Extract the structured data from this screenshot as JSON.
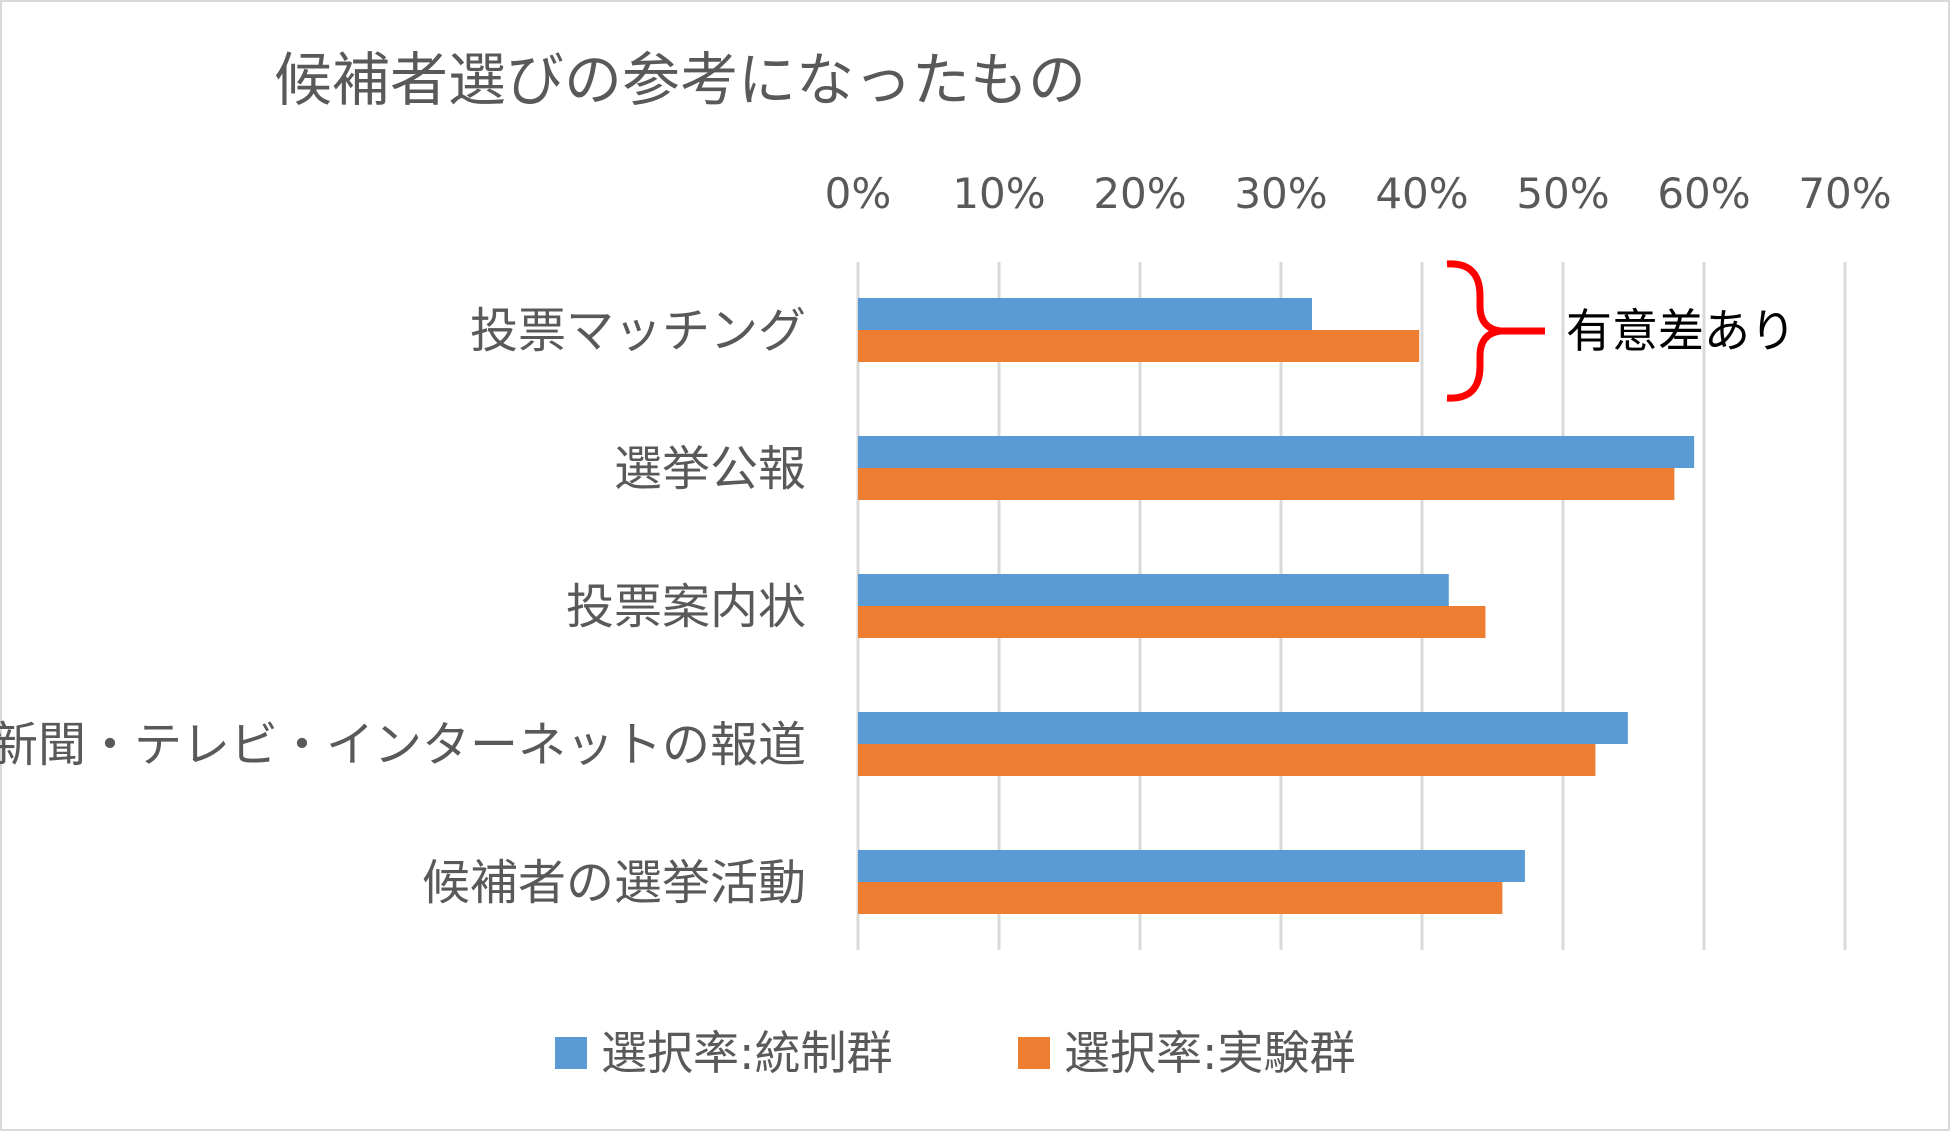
{
  "chart_data": {
    "type": "bar",
    "orientation": "horizontal",
    "title": "候補者選びの参考になったもの",
    "categories": [
      "投票マッチング",
      "選挙公報",
      "投票案内状",
      "新聞・テレビ・インターネットの報道",
      "候補者の選挙活動"
    ],
    "series": [
      {
        "name": "選択率:統制群",
        "color": "#5b9bd5",
        "values": [
          32.2,
          59.3,
          41.9,
          54.6,
          47.3
        ]
      },
      {
        "name": "選択率:実験群",
        "color": "#ed7d31",
        "values": [
          39.8,
          57.9,
          44.5,
          52.3,
          45.7
        ]
      }
    ],
    "xlim": [
      0,
      70
    ],
    "x_ticks": [
      "0%",
      "10%",
      "20%",
      "30%",
      "40%",
      "50%",
      "60%",
      "70%"
    ],
    "x_axis_position": "top",
    "grid": true,
    "legend_position": "bottom",
    "annotation": {
      "text": "有意差あり",
      "target_category": "投票マッチング",
      "bracket_color": "#ff0000"
    }
  }
}
